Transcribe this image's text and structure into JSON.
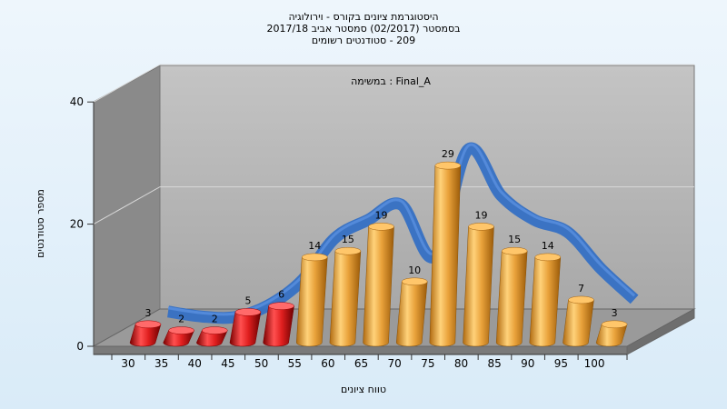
{
  "chart_data": {
    "type": "bar",
    "title_lines": [
      "היסטוגרמת ציונים בקורס - וירולוגיה",
      "בסמסטר  (02/2017)  סמסטר אביב 2017/18",
      "209 - סטודנטים רשומים"
    ],
    "panel_label": "במשימה : Final_A",
    "xlabel": "טווח ציונים",
    "ylabel": "מספר סטודנטים",
    "categories": [
      "30",
      "35",
      "40",
      "45",
      "50",
      "55",
      "60",
      "65",
      "70",
      "75",
      "80",
      "85",
      "90",
      "95",
      "100"
    ],
    "values": [
      3,
      2,
      2,
      5,
      6,
      14,
      15,
      19,
      10,
      29,
      19,
      15,
      14,
      7,
      3
    ],
    "data_labels": [
      "3",
      "2",
      "2",
      "5",
      "6",
      "14",
      "15",
      "19",
      "10",
      "29",
      "19",
      "15",
      "14",
      "7",
      "3"
    ],
    "y_ticks": [
      "0",
      "20",
      "40"
    ],
    "ylim": [
      0,
      40
    ],
    "fail_threshold_index": 5,
    "curve_values": [
      3,
      2.2,
      2.1,
      4,
      8,
      15,
      18,
      20.5,
      12,
      29.5,
      22,
      18,
      16,
      10,
      5
    ],
    "colors": {
      "fail_bar": "#e01f1f",
      "pass_bar": "#e9a23b",
      "curve": "#3570c4",
      "wall_left": "#8a8a8a",
      "wall_back": "#b7b7b7",
      "floor": "#9a9a9a"
    }
  }
}
